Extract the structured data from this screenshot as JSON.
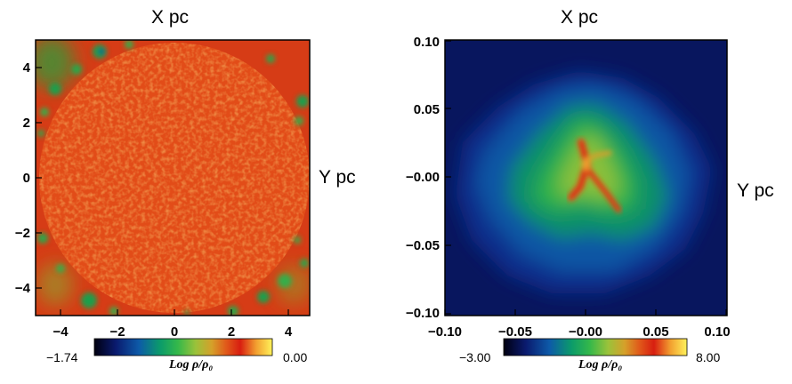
{
  "chart_data": [
    {
      "type": "heatmap",
      "xlabel": "X pc",
      "ylabel": "Y pc",
      "xlim": [
        -5,
        5
      ],
      "ylim": [
        -5,
        5
      ],
      "xticks": [
        "−4",
        "−2",
        "0",
        "2",
        "4"
      ],
      "yticks": [
        "4",
        "2",
        "0",
        "−2",
        "−4"
      ],
      "colorbar": {
        "min_label": "−1.74",
        "max_label": "0.00",
        "title": "Log ρ/ρ₀",
        "range": [
          -1.74,
          0.0
        ]
      },
      "description_values": {
        "background": "red",
        "clumps": "green"
      }
    },
    {
      "type": "heatmap",
      "xlabel": "X pc",
      "ylabel": "Y pc",
      "xlim": [
        -0.1,
        0.1
      ],
      "ylim": [
        -0.1,
        0.1
      ],
      "xticks": [
        "−0.10",
        "−0.05",
        "−0.00",
        "0.05",
        "0.10"
      ],
      "yticks": [
        "0.10",
        "0.05",
        "−0.00",
        "−0.05",
        "−0.10"
      ],
      "colorbar": {
        "min_label": "−3.00",
        "max_label": "8.00",
        "title": "Log ρ/ρ₀",
        "range": [
          -3.0,
          8.0
        ]
      }
    }
  ],
  "colors": {
    "colormap": [
      "#000010",
      "#0a1a6e",
      "#0d5aa8",
      "#0b9b6a",
      "#35b84a",
      "#9bc23a",
      "#d5a02a",
      "#e05a1a",
      "#d81e10",
      "#f2a030",
      "#fff25a"
    ],
    "left_bg": "#d84418",
    "right_bg": "#0a1a68"
  }
}
